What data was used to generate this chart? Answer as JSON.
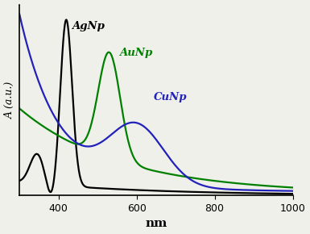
{
  "xmin": 300,
  "xmax": 1000,
  "xlabel": "nm",
  "ylabel": "A (a.u.)",
  "xticks": [
    400,
    600,
    800,
    1000
  ],
  "background_color": "#f0f0ea",
  "AgNp_color": "#000000",
  "AuNp_color": "#008000",
  "CuNp_color": "#2222bb",
  "AgNp_label": "AgNp",
  "AuNp_label": "AuNp",
  "CuNp_label": "CuNp"
}
